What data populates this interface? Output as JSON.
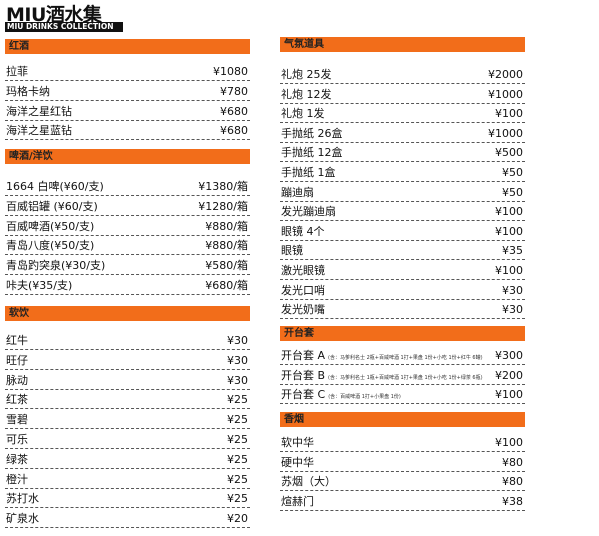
{
  "header": {
    "title": "MIU酒水集",
    "subtitle": "MIU DRINKS COLLECTION"
  },
  "columns": [
    {
      "sections": [
        {
          "title": "红酒",
          "items": [
            {
              "name": "拉菲",
              "price": "¥1080"
            },
            {
              "name": "玛格卡纳",
              "price": "¥780"
            },
            {
              "name": "海洋之星红钻",
              "price": "¥680"
            },
            {
              "name": "海洋之星蓝钻",
              "price": "¥680"
            }
          ]
        },
        {
          "title": "啤酒/洋饮",
          "items": [
            {
              "name": "1664 白啤(¥60/支)",
              "price": "¥1380/箱"
            },
            {
              "name": "百威铝罐 (¥60/支)",
              "price": "¥1280/箱"
            },
            {
              "name": "百威啤酒(¥50/支)",
              "price": "¥880/箱"
            },
            {
              "name": "青岛八度(¥50/支)",
              "price": "¥880/箱"
            },
            {
              "name": "青岛趵突泉(¥30/支)",
              "price": "¥580/箱"
            },
            {
              "name": "咔夫(¥35/支)",
              "price": "¥680/箱"
            }
          ]
        },
        {
          "title": "软饮",
          "items": [
            {
              "name": "红牛",
              "price": "¥30"
            },
            {
              "name": "旺仔",
              "price": "¥30"
            },
            {
              "name": "脉动",
              "price": "¥30"
            },
            {
              "name": "红茶",
              "price": "¥25"
            },
            {
              "name": "雪碧",
              "price": "¥25"
            },
            {
              "name": "可乐",
              "price": "¥25"
            },
            {
              "name": "绿茶",
              "price": "¥25"
            },
            {
              "name": "橙汁",
              "price": "¥25"
            },
            {
              "name": "苏打水",
              "price": "¥25"
            },
            {
              "name": "矿泉水",
              "price": "¥20"
            }
          ]
        }
      ]
    },
    {
      "sections": [
        {
          "title": "气氛道具",
          "items": [
            {
              "name": "礼炮 25发",
              "price": "¥2000"
            },
            {
              "name": "礼炮 12发",
              "price": "¥1000"
            },
            {
              "name": "礼炮 1发",
              "price": "¥100"
            },
            {
              "name": "手抛纸 26盒",
              "price": "¥1000"
            },
            {
              "name": "手抛纸 12盒",
              "price": "¥500"
            },
            {
              "name": "手抛纸 1盒",
              "price": "¥50"
            },
            {
              "name": "蹦迪扇",
              "price": "¥50"
            },
            {
              "name": "发光蹦迪扇",
              "price": "¥100"
            },
            {
              "name": "眼镜 4个",
              "price": "¥100"
            },
            {
              "name": "眼镜",
              "price": "¥35"
            },
            {
              "name": "激光眼镜",
              "price": "¥100"
            },
            {
              "name": "发光口哨",
              "price": "¥30"
            },
            {
              "name": "发光奶嘴",
              "price": "¥30"
            }
          ]
        },
        {
          "title": "开台套",
          "items": [
            {
              "name": "开台套 A",
              "note": "(含：马爹利名士 2瓶+百威啤酒 1打+果盘 1份+小吃 1份+红牛 6罐)",
              "price": "¥300"
            },
            {
              "name": "开台套 B",
              "note": "(含：马爹利名士 1瓶+百威啤酒 1打+果盘 1份+小吃 1份+绿茶 6瓶)",
              "price": "¥200"
            },
            {
              "name": "开台套 C",
              "note": "(含：百威啤酒 1打+小果盘 1份)",
              "price": "¥100"
            }
          ]
        },
        {
          "title": "香烟",
          "items": [
            {
              "name": "软中华",
              "price": "¥100"
            },
            {
              "name": "硬中华",
              "price": "¥80"
            },
            {
              "name": "苏烟（大）",
              "price": "¥80"
            },
            {
              "name": "煊赫门",
              "price": "¥38"
            }
          ]
        }
      ]
    }
  ]
}
